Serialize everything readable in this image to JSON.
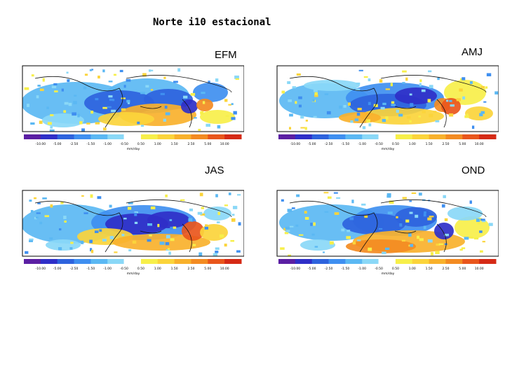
{
  "title": "Norte i10 estacional",
  "panels": [
    {
      "season": "EFM"
    },
    {
      "season": "AMJ"
    },
    {
      "season": "JAS"
    },
    {
      "season": "OND"
    }
  ],
  "colorbar": {
    "ticks": [
      "-10.00",
      "-5.00",
      "-2.50",
      "-1.50",
      "-1.00",
      "-0.50",
      "0.50",
      "1.00",
      "1.50",
      "2.50",
      "5.00",
      "10.00"
    ],
    "units": "mm/day",
    "colors": [
      "#5b1fa3",
      "#2f2fc8",
      "#2e63dd",
      "#3f8ff0",
      "#5bb8f3",
      "#8ad8f7",
      "#ffffff",
      "#f7ef4a",
      "#fbd43b",
      "#f8b12c",
      "#f38b22",
      "#e9561c",
      "#d52a16"
    ]
  }
}
